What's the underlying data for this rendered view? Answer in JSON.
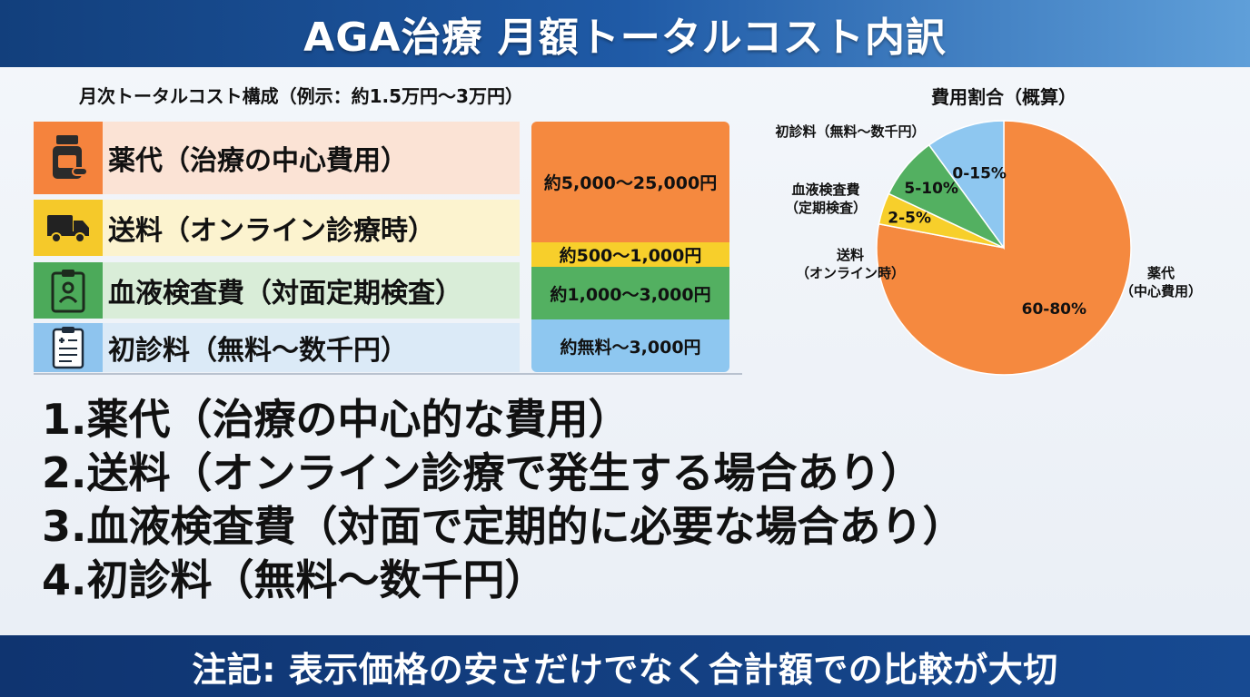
{
  "header": {
    "title": "AGA治療 月額トータルコスト内訳"
  },
  "table": {
    "title": "月次トータルコスト構成（例示：約1.5万円〜3万円）",
    "rows": [
      {
        "label": "薬代（治療の中心費用）",
        "icon": "medicine-bottle-icon",
        "color": "#f5833d"
      },
      {
        "label": "送料（オンライン診療時）",
        "icon": "truck-icon",
        "color": "#f5c92a"
      },
      {
        "label": "血液検査費（対面定期検査）",
        "icon": "clipboard-person-icon",
        "color": "#4caa5a"
      },
      {
        "label": "初診料（無料〜数千円）",
        "icon": "medical-record-icon",
        "color": "#8ec4ee"
      }
    ],
    "amounts": [
      "約5,000〜25,000円",
      "約500〜1,000円",
      "約1,000〜3,000円",
      "約無料〜3,000円"
    ]
  },
  "chart_data": {
    "type": "pie",
    "title": "費用割合（概算）",
    "slices": [
      {
        "label": "薬代\n（中心費用）",
        "range": "60-80%",
        "value": 78,
        "color": "#f5893f"
      },
      {
        "label": "送料\n（オンライン時）",
        "range": "2-5%",
        "value": 4,
        "color": "#f7cf2b"
      },
      {
        "label": "血液検査費\n（定期検査）",
        "range": "5-10%",
        "value": 8,
        "color": "#53b061"
      },
      {
        "label": "初診料（無料〜数千円）",
        "range": "0-15%",
        "value": 10,
        "color": "#8ec7f0"
      }
    ]
  },
  "list": [
    "1.薬代（治療の中心的な費用）",
    "2.送料（オンライン診療で発生する場合あり）",
    "3.血液検査費（対面で定期的に必要な場合あり）",
    "4.初診料（無料〜数千円）"
  ],
  "footer": {
    "note": "注記: 表示価格の安さだけでなく合計額での比較が大切"
  }
}
